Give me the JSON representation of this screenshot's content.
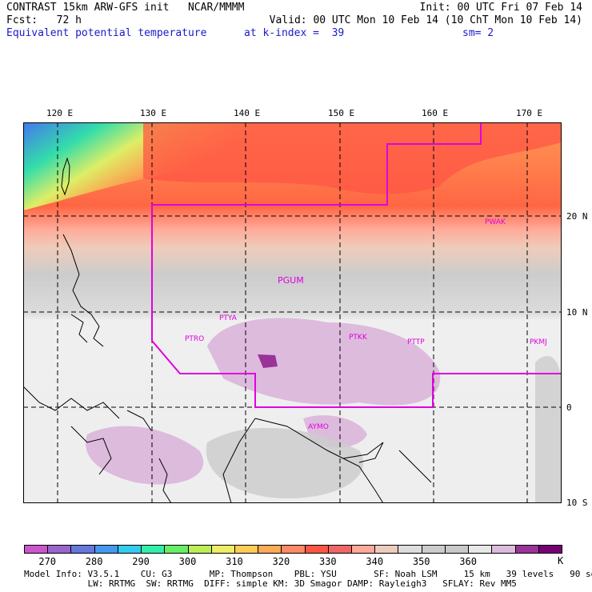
{
  "header": {
    "title": "CONTRAST 15km ARW-GFS init   NCAR/MMMM",
    "init": "Init: 00 UTC Fri 07 Feb 14",
    "fcst": "Fcst:   72 h",
    "valid": "Valid: 00 UTC Mon 10 Feb 14 (10 ChT Mon 10 Feb 14)",
    "field": "Equivalent potential temperature",
    "level": "at k-index =  39",
    "smoothing": "sm= 2"
  },
  "axes": {
    "lon_labels": [
      "120 E",
      "130 E",
      "140 E",
      "150 E",
      "160 E",
      "170 E"
    ],
    "lat_labels": [
      "20 N",
      "10 N",
      "0",
      "10 S"
    ]
  },
  "stations": [
    "PWAK",
    "PGUM",
    "PTYA",
    "PTRO",
    "PTKK",
    "PTTP",
    "PKMJ",
    "AYMO"
  ],
  "colorbar": {
    "colors": [
      "#cc55cc",
      "#9966cc",
      "#6677dd",
      "#4499ee",
      "#33ccee",
      "#33eeaa",
      "#66ee66",
      "#bbee55",
      "#eeee66",
      "#ffcc55",
      "#ffaa55",
      "#ff8866",
      "#ff5544",
      "#ee6666",
      "#ffaa99",
      "#eeccbb",
      "#dddddd",
      "#cccccc",
      "#c8c8c8",
      "#e8e8e8",
      "#ddbbdd",
      "#993399",
      "#770077"
    ],
    "labels": [
      "270",
      "280",
      "290",
      "300",
      "310",
      "320",
      "330",
      "340",
      "350",
      "360"
    ],
    "unit": "K"
  },
  "model_info": {
    "line1": "Model Info: V3.5.1    CU: G3       MP: Thompson    PBL: YSU       SF: Noah LSM     15 km   39 levels   90 sec",
    "line2": "            LW: RRTMG  SW: RRTMG  DIFF: simple KM: 3D Smagor DAMP: Rayleigh3   SFLAY: Rev MM5"
  }
}
